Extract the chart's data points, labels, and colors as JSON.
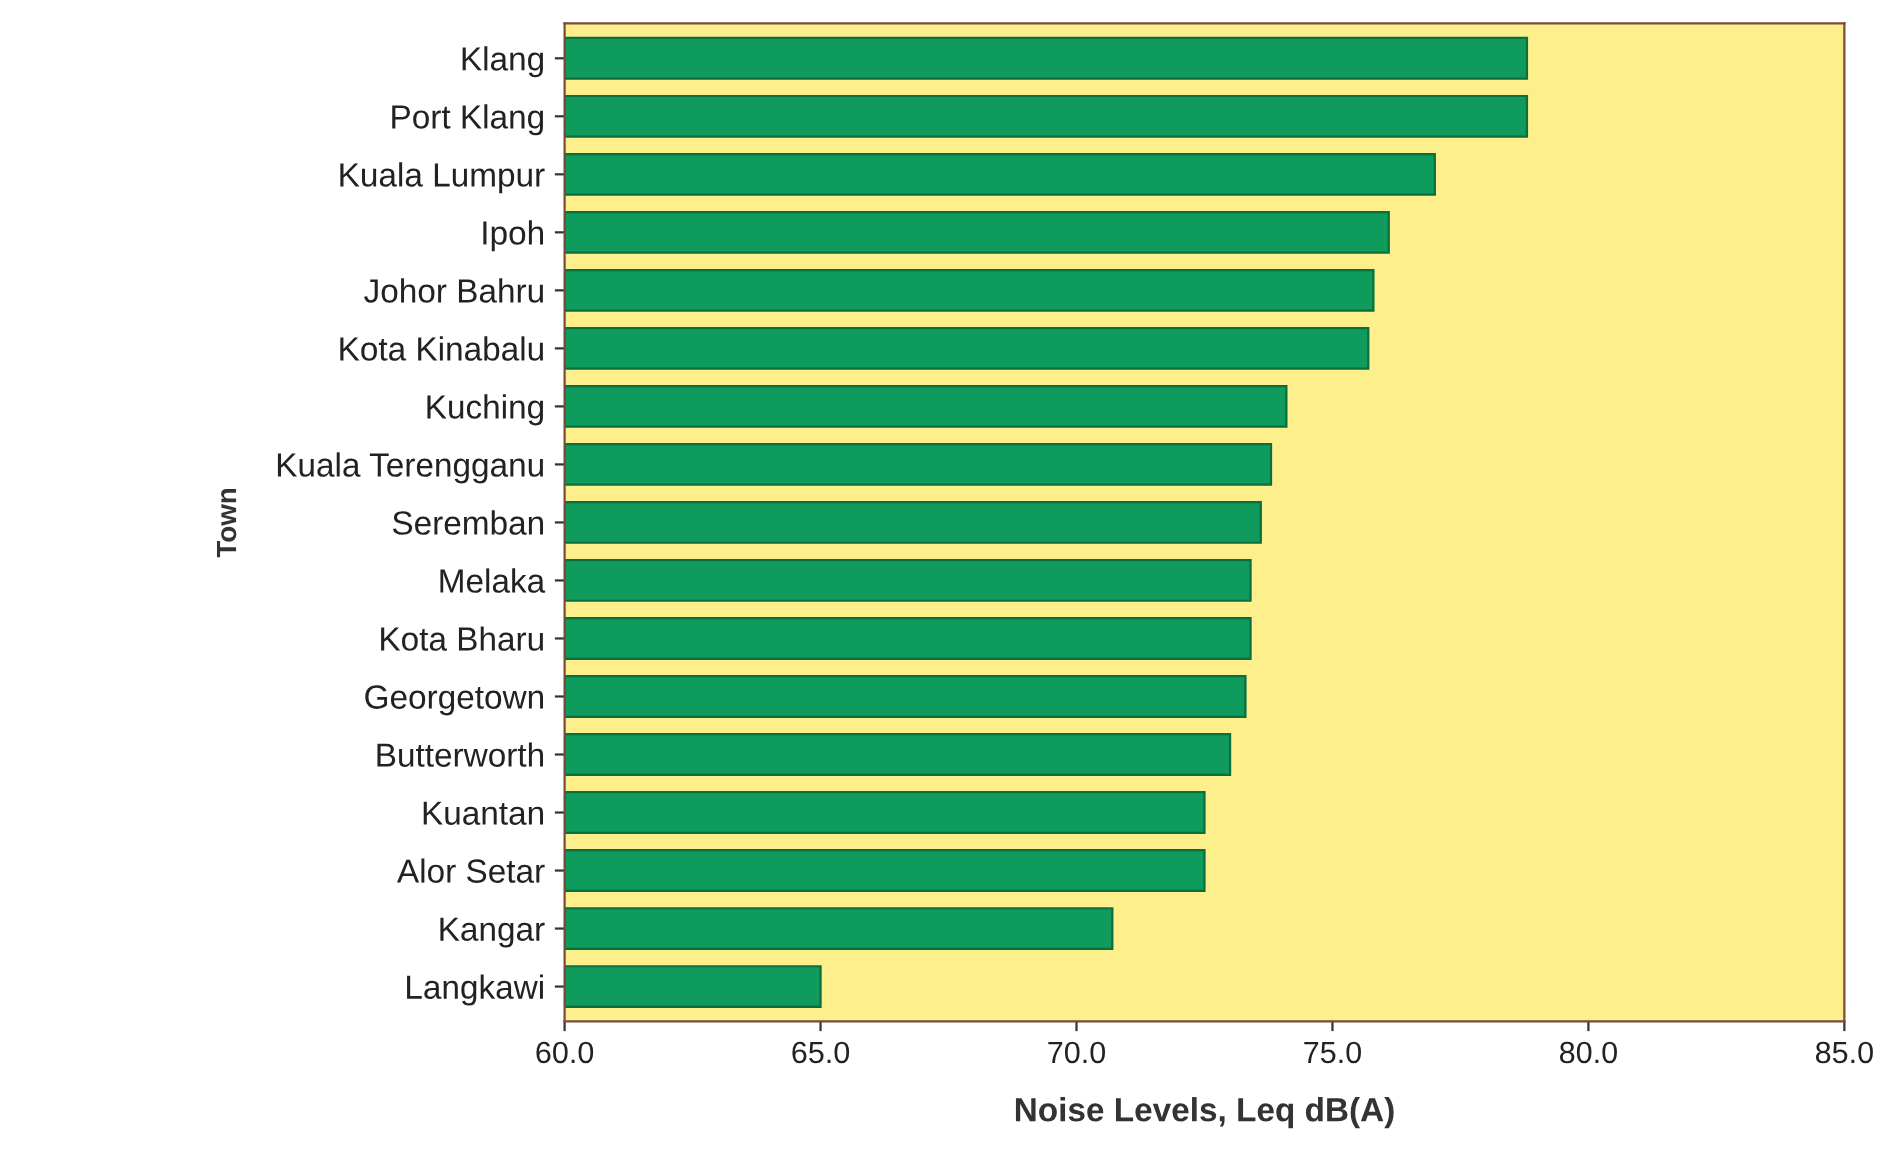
{
  "chart_data": {
    "type": "bar",
    "orientation": "horizontal",
    "xlabel": "Noise Levels, Leq dB(A)",
    "ylabel": "Town",
    "categories": [
      "Klang",
      "Port Klang",
      "Kuala Lumpur",
      "Ipoh",
      "Johor Bahru",
      "Kota Kinabalu",
      "Kuching",
      "Kuala Terengganu",
      "Seremban",
      "Melaka",
      "Kota Bharu",
      "Georgetown",
      "Butterworth",
      "Kuantan",
      "Alor Setar",
      "Kangar",
      "Langkawi"
    ],
    "values": [
      78.8,
      78.8,
      77.0,
      76.1,
      75.8,
      75.7,
      74.1,
      73.8,
      73.6,
      73.4,
      73.4,
      73.3,
      73.0,
      72.5,
      72.5,
      70.7,
      65.0
    ],
    "color": "#0f9b5c",
    "xlim": [
      60,
      85
    ],
    "xticks": [
      {
        "value": 60,
        "label": "60.0"
      },
      {
        "value": 65,
        "label": "65.0"
      },
      {
        "value": 70,
        "label": "70.0"
      },
      {
        "value": 75,
        "label": "75.0"
      },
      {
        "value": 80,
        "label": "80.0"
      },
      {
        "value": 85,
        "label": "85.0"
      }
    ],
    "grid": false
  }
}
